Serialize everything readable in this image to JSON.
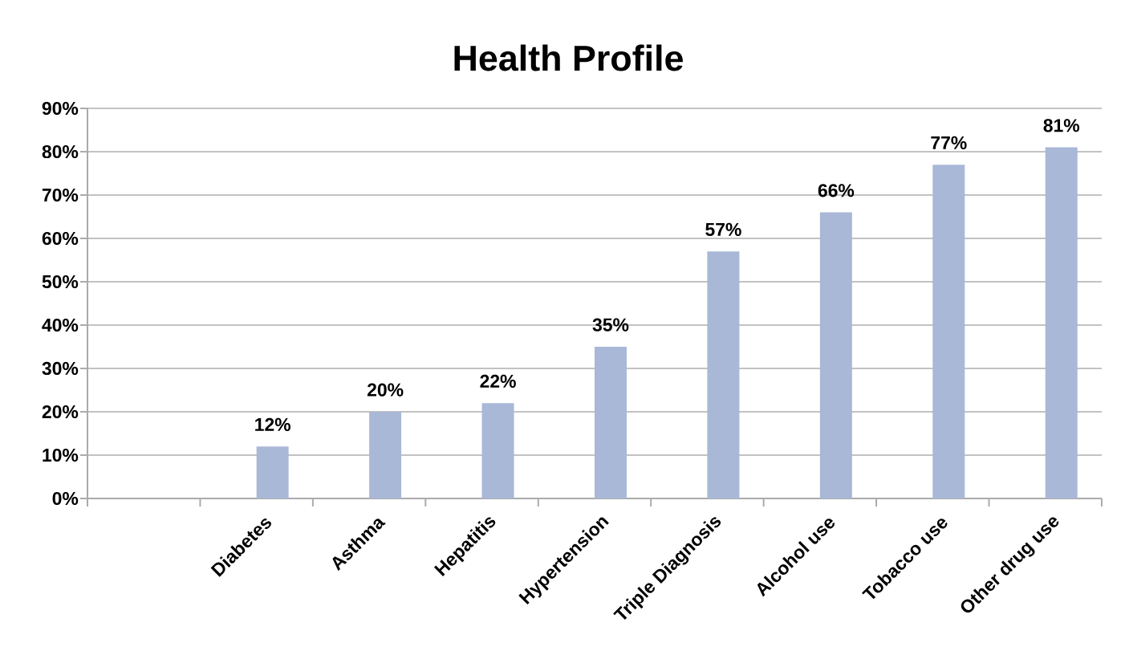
{
  "chart_data": {
    "type": "bar",
    "title": "Health Profile",
    "categories": [
      null,
      "Diabetes",
      "Asthma",
      "Hepatitis",
      "Hypertension",
      "Triple Diagnosis",
      "Alcohol use",
      "Tobacco use",
      "Other drug use"
    ],
    "values": [
      null,
      12,
      20,
      22,
      35,
      57,
      66,
      77,
      81
    ],
    "value_labels": [
      null,
      "12%",
      "20%",
      "22%",
      "35%",
      "57%",
      "66%",
      "77%",
      "81%"
    ],
    "color": "#a9b8d7",
    "ylim": [
      0,
      90
    ],
    "yticks": [
      {
        "value": 0,
        "label": "0%"
      },
      {
        "value": 10,
        "label": "10%"
      },
      {
        "value": 20,
        "label": "20%"
      },
      {
        "value": 30,
        "label": "30%"
      },
      {
        "value": 40,
        "label": "40%"
      },
      {
        "value": 50,
        "label": "50%"
      },
      {
        "value": 60,
        "label": "60%"
      },
      {
        "value": 70,
        "label": "70%"
      },
      {
        "value": 80,
        "label": "80%"
      },
      {
        "value": 90,
        "label": "90%"
      }
    ],
    "grid": "y"
  }
}
